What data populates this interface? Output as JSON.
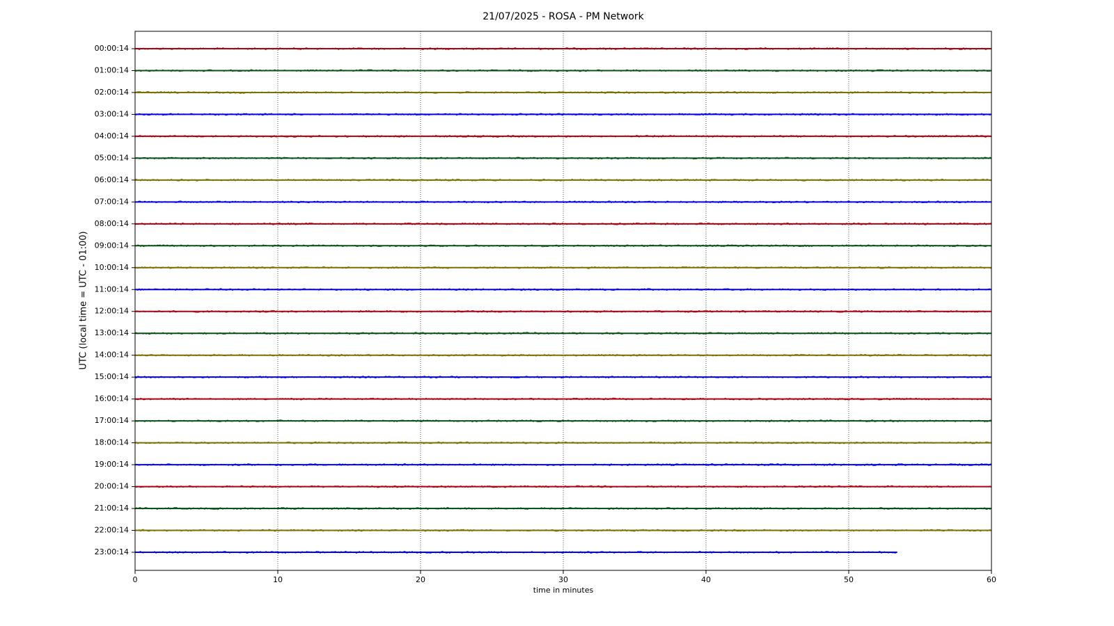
{
  "chart_data": {
    "type": "helicorder",
    "title": "21/07/2025 - ROSA - PM Network",
    "xlabel": "time in minutes",
    "ylabel": "UTC (local time = UTC - 01:00)",
    "xlim": [
      0,
      60
    ],
    "xticks": [
      0,
      10,
      20,
      30,
      40,
      50,
      60
    ],
    "grid": true,
    "series": [
      {
        "name": "00:00:14",
        "color": "#b00010",
        "x": [
          0,
          60
        ]
      },
      {
        "name": "01:00:14",
        "color": "#0b5014",
        "x": [
          0,
          60
        ]
      },
      {
        "name": "02:00:14",
        "color": "#7d7000",
        "x": [
          0,
          60
        ]
      },
      {
        "name": "03:00:14",
        "color": "#0000ff",
        "x": [
          0,
          60
        ]
      },
      {
        "name": "04:00:14",
        "color": "#b00010",
        "x": [
          0,
          60
        ]
      },
      {
        "name": "05:00:14",
        "color": "#0b5014",
        "x": [
          0,
          60
        ]
      },
      {
        "name": "06:00:14",
        "color": "#7d7000",
        "x": [
          0,
          60
        ]
      },
      {
        "name": "07:00:14",
        "color": "#0000ff",
        "x": [
          0,
          60
        ]
      },
      {
        "name": "08:00:14",
        "color": "#b00010",
        "x": [
          0,
          60
        ]
      },
      {
        "name": "09:00:14",
        "color": "#0b5014",
        "x": [
          0,
          60
        ]
      },
      {
        "name": "10:00:14",
        "color": "#7d7000",
        "x": [
          0,
          60
        ]
      },
      {
        "name": "11:00:14",
        "color": "#0000ff",
        "x": [
          0,
          60
        ]
      },
      {
        "name": "12:00:14",
        "color": "#b00010",
        "x": [
          0,
          60
        ]
      },
      {
        "name": "13:00:14",
        "color": "#0b5014",
        "x": [
          0,
          60
        ]
      },
      {
        "name": "14:00:14",
        "color": "#7d7000",
        "x": [
          0,
          60
        ]
      },
      {
        "name": "15:00:14",
        "color": "#0000ff",
        "x": [
          0,
          60
        ]
      },
      {
        "name": "16:00:14",
        "color": "#b00010",
        "x": [
          0,
          60
        ]
      },
      {
        "name": "17:00:14",
        "color": "#0b5014",
        "x": [
          0,
          60
        ]
      },
      {
        "name": "18:00:14",
        "color": "#7d7000",
        "x": [
          0,
          60
        ]
      },
      {
        "name": "19:00:14",
        "color": "#0000ff",
        "x": [
          0,
          60
        ]
      },
      {
        "name": "20:00:14",
        "color": "#b00010",
        "x": [
          0,
          60
        ]
      },
      {
        "name": "21:00:14",
        "color": "#0b5014",
        "x": [
          0,
          60
        ]
      },
      {
        "name": "22:00:14",
        "color": "#7d7000",
        "x": [
          0,
          60
        ]
      },
      {
        "name": "23:00:14",
        "color": "#0000ff",
        "x": [
          0,
          53.4
        ]
      }
    ]
  }
}
